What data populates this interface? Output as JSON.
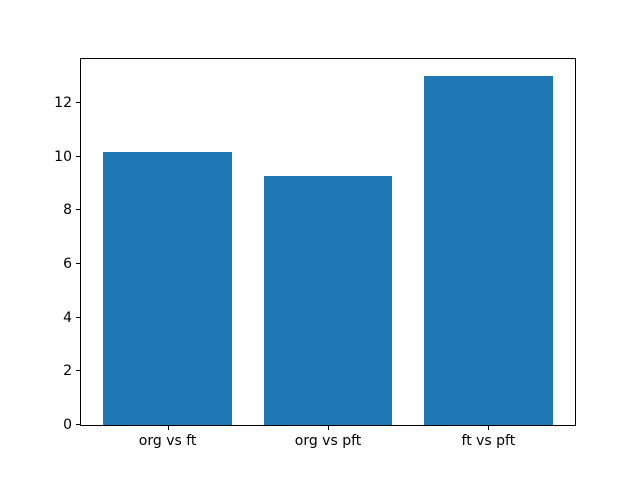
{
  "chart_data": {
    "type": "bar",
    "title": "",
    "xlabel": "",
    "ylabel": "",
    "categories": [
      "org vs ft",
      "org vs pft",
      "ft vs pft"
    ],
    "values": [
      10.2,
      9.3,
      13.0
    ],
    "yticks": [
      0,
      2,
      4,
      6,
      8,
      10,
      12
    ],
    "ylim": [
      0,
      13.65
    ],
    "xlim": [
      -0.54,
      2.54
    ],
    "bar_width": 0.8,
    "bar_color": "#1f77b4",
    "axis_color": "#000000",
    "background_color": "#ffffff",
    "grid": false,
    "legend": null
  }
}
